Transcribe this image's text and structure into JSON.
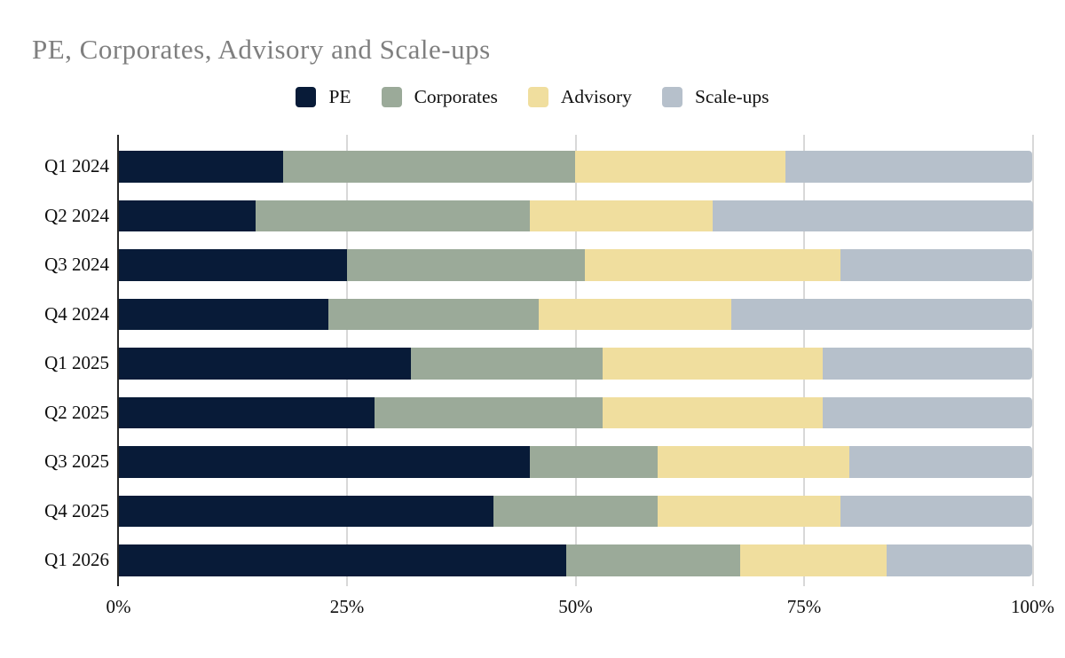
{
  "title": "PE, Corporates, Advisory and Scale-ups",
  "colors": {
    "background": "#FFFFFF",
    "title_text": "#7F7F7F",
    "label_text": "#111111",
    "gridline": "#D8D8D8",
    "axis_line": "#252525"
  },
  "chart_data": {
    "type": "bar",
    "orientation": "horizontal",
    "stacked": true,
    "title": "PE, Corporates, Advisory and Scale-ups",
    "categories": [
      "Q1 2024",
      "Q2 2024",
      "Q3 2024",
      "Q4 2024",
      "Q1 2025",
      "Q2 2025",
      "Q3 2025",
      "Q4 2025",
      "Q1 2026"
    ],
    "series": [
      {
        "name": "PE",
        "color": "#081B38",
        "values": [
          18,
          15,
          25,
          23,
          32,
          28,
          45,
          41,
          49
        ]
      },
      {
        "name": "Corporates",
        "color": "#9BAA99",
        "values": [
          32,
          30,
          26,
          23,
          21,
          25,
          14,
          18,
          19
        ]
      },
      {
        "name": "Advisory",
        "color": "#F0DE9E",
        "values": [
          23,
          20,
          28,
          21,
          24,
          24,
          21,
          20,
          16
        ]
      },
      {
        "name": "Scale-ups",
        "color": "#B6C0CB",
        "values": [
          27,
          35,
          21,
          33,
          23,
          23,
          20,
          21,
          16
        ]
      }
    ],
    "xlabel": "",
    "ylabel": "",
    "x_axis": {
      "range": [
        0,
        100
      ],
      "unit": "%",
      "tick_values": [
        0,
        25,
        50,
        75,
        100
      ],
      "tick_labels": [
        "0%",
        "25%",
        "50%",
        "75%",
        "100%"
      ]
    },
    "legend_position": "top",
    "grid": "vertical"
  }
}
